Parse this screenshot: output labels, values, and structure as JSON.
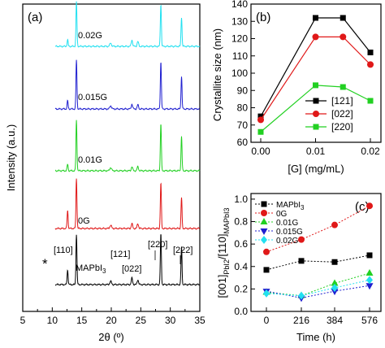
{
  "chart_data": [
    {
      "panel": "(a)",
      "type": "line",
      "xlabel": "2θ (º)",
      "ylabel": "Intensity (a.u.)",
      "xlim": [
        5,
        35
      ],
      "xticks": [
        "5",
        "10",
        "15",
        "20",
        "25",
        "30",
        "35"
      ],
      "series": [
        {
          "name": "0.02G",
          "color": "#22e0f0"
        },
        {
          "name": "0.015G",
          "color": "#1f1fd0"
        },
        {
          "name": "0.01G",
          "color": "#22d022"
        },
        {
          "name": "0G",
          "color": "#e01818"
        },
        {
          "name": "MAPbI",
          "name_sub": "3",
          "color": "#000000"
        }
      ],
      "peak_positions": [
        12.6,
        14.1,
        19.9,
        23.5,
        24.5,
        28.4,
        31.9
      ],
      "peak_labels": [
        {
          "text": "*"
        },
        {
          "text": "[110]"
        },
        {
          "text": "[121]"
        },
        {
          "text": "[022]"
        },
        {
          "text": "[220]"
        },
        {
          "text": "[222]"
        }
      ]
    },
    {
      "panel": "(b)",
      "type": "line",
      "xlabel": "[G] (mg/mL)",
      "ylabel": "Crystallite size (nm)",
      "ylim": [
        60,
        140
      ],
      "yticks": [
        "60",
        "70",
        "80",
        "90",
        "100",
        "110",
        "120",
        "130",
        "140"
      ],
      "xticks": [
        "0.00",
        "0.01",
        "0.02"
      ],
      "x": [
        0,
        0.01,
        0.015,
        0.02
      ],
      "series": [
        {
          "name": "[121]",
          "color": "#000000",
          "marker": "square",
          "values": [
            75,
            132,
            132,
            112
          ]
        },
        {
          "name": "[022]",
          "color": "#e01818",
          "marker": "circle",
          "values": [
            73,
            121,
            121,
            105
          ]
        },
        {
          "name": "[220]",
          "color": "#22d022",
          "marker": "square",
          "values": [
            66,
            93,
            92,
            84
          ]
        }
      ]
    },
    {
      "panel": "(c)",
      "type": "scatter",
      "xlabel": "Time (h)",
      "ylabel_parts": {
        "main1": "[001]",
        "sub1": "PbI2",
        "main2": "/[110]",
        "sub2": "MAPbI3"
      },
      "ylim": [
        0.0,
        1.05
      ],
      "yticks": [
        "0.0",
        "0.2",
        "0.4",
        "0.6",
        "0.8",
        "1.0"
      ],
      "xticks": [
        "0",
        "216",
        "384",
        "576"
      ],
      "series": [
        {
          "name": "MAPbI",
          "name_sub": "3",
          "color": "#000000",
          "marker": "square",
          "values": [
            0.37,
            0.45,
            0.44,
            0.5
          ]
        },
        {
          "name": "0G",
          "color": "#e01818",
          "marker": "circle",
          "values": [
            0.53,
            0.64,
            0.77,
            0.94
          ]
        },
        {
          "name": "0.01G",
          "color": "#22d022",
          "marker": "triangle-up",
          "values": [
            0.17,
            0.14,
            0.25,
            0.34
          ]
        },
        {
          "name": "0.015G",
          "color": "#1f1fd0",
          "marker": "triangle-down",
          "values": [
            0.18,
            0.12,
            0.18,
            0.23
          ]
        },
        {
          "name": "0.02G",
          "color": "#22e0f0",
          "marker": "diamond",
          "values": [
            0.16,
            0.14,
            0.21,
            0.28
          ]
        }
      ]
    }
  ]
}
